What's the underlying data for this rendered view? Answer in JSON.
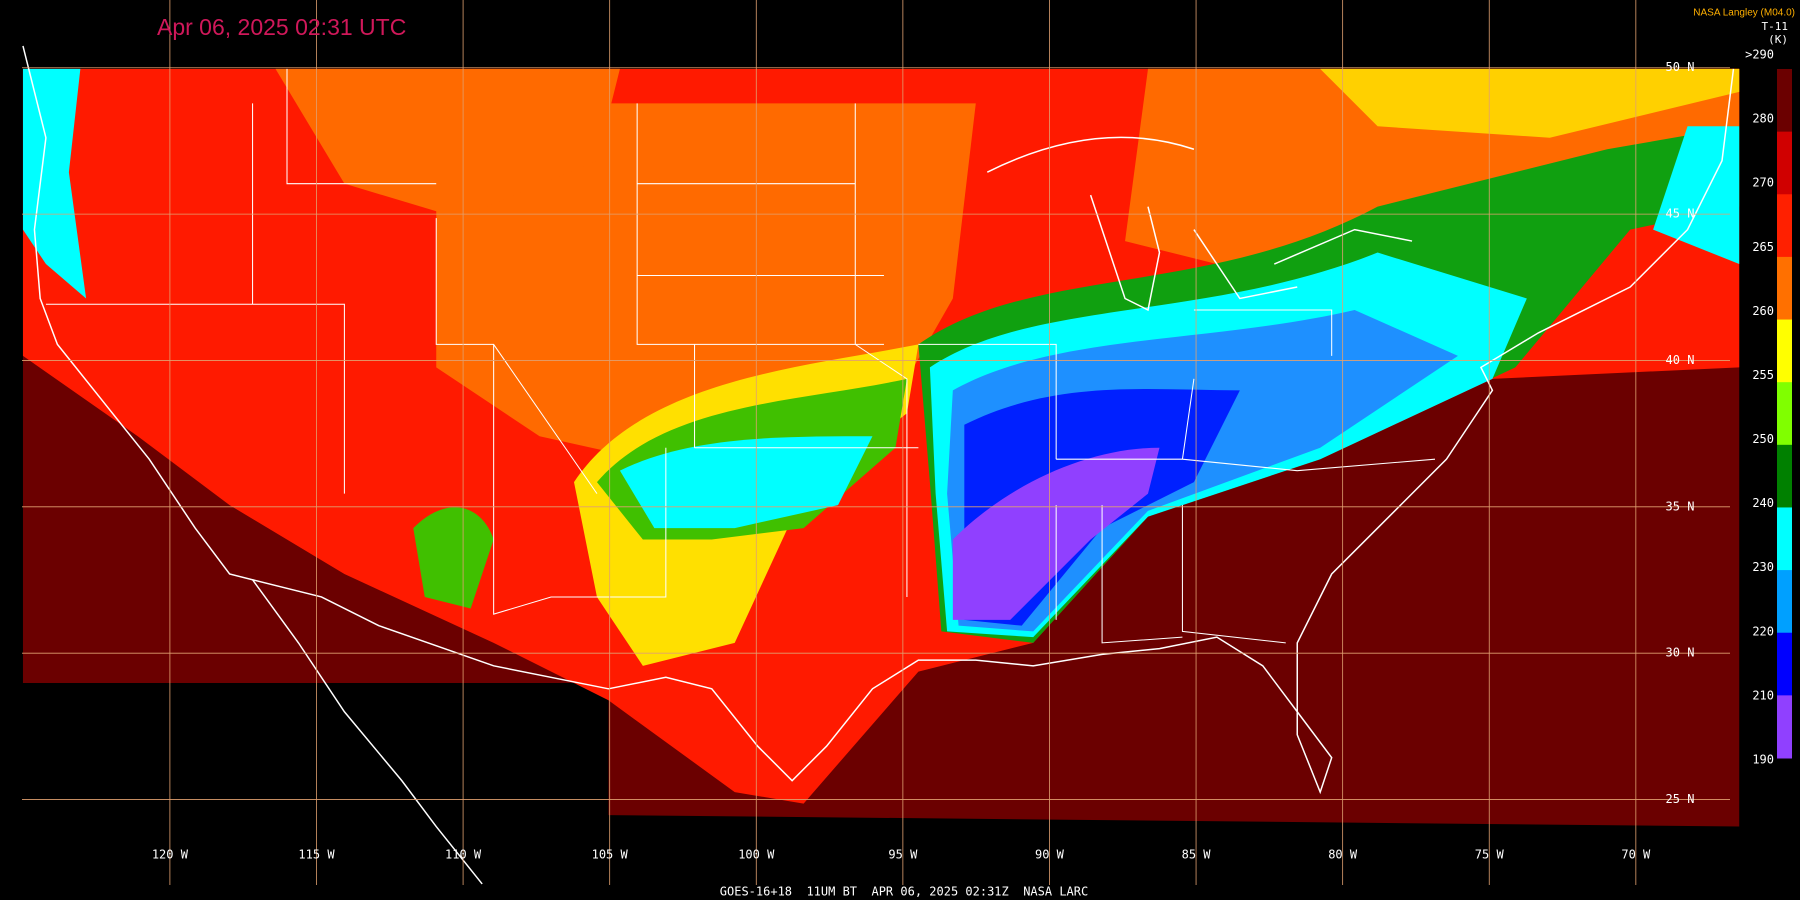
{
  "header": {
    "timestamp": "Apr 06, 2025 02:31 UTC",
    "source": "NASA Langley (M04.0)"
  },
  "colorbar": {
    "title": "T-11",
    "unit": "(K)",
    "labels": [
      ">290",
      "280",
      "270",
      "265",
      "260",
      "255",
      "250",
      "240",
      "230",
      "220",
      "210",
      "190"
    ],
    "colors": [
      "#6b0000",
      "#d00000",
      "#ff2000",
      "#ff7000",
      "#ffff00",
      "#80ff00",
      "#008000",
      "#00ffff",
      "#00a0ff",
      "#0000ff",
      "#9040ff"
    ]
  },
  "grid": {
    "latitudes": [
      "50 N",
      "45 N",
      "40 N",
      "35 N",
      "30 N",
      "25 N"
    ],
    "longitudes": [
      "120 W",
      "115 W",
      "110 W",
      "105 W",
      "100 W",
      "95 W",
      "90 W",
      "85 W",
      "80 W",
      "75 W",
      "70 W"
    ]
  },
  "footer": "GOES-16+18  11UM BT  APR 06, 2025 02:31Z  NASA LARC"
}
